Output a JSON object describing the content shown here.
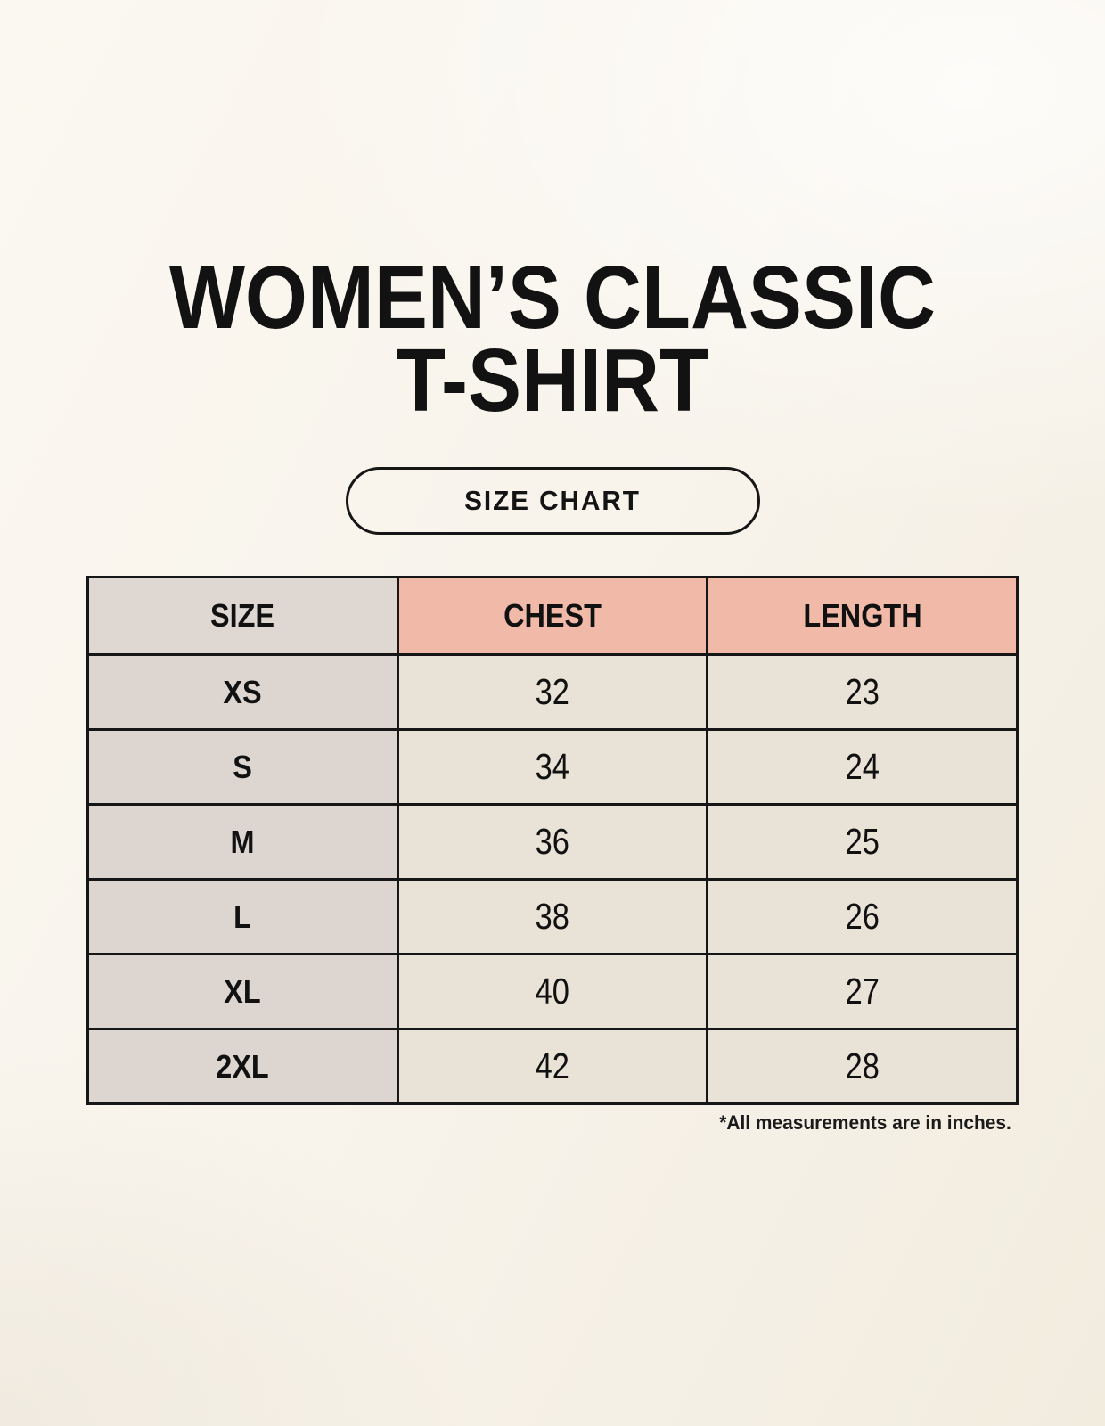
{
  "page": {
    "title_line1": "WOMEN’S CLASSIC",
    "title_line2": "T-SHIRT",
    "badge_label": "SIZE CHART",
    "footnote": "*All measurements are in inches."
  },
  "size_table": {
    "columns": [
      "SIZE",
      "CHEST",
      "LENGTH"
    ],
    "rows": [
      {
        "size": "XS",
        "chest": "32",
        "length": "23"
      },
      {
        "size": "S",
        "chest": "34",
        "length": "24"
      },
      {
        "size": "M",
        "chest": "36",
        "length": "25"
      },
      {
        "size": "L",
        "chest": "38",
        "length": "26"
      },
      {
        "size": "XL",
        "chest": "40",
        "length": "27"
      },
      {
        "size": "2XL",
        "chest": "42",
        "length": "28"
      }
    ]
  },
  "chart_data": {
    "type": "table",
    "title": "WOMEN’S CLASSIC T-SHIRT — SIZE CHART",
    "columns": [
      "SIZE",
      "CHEST",
      "LENGTH"
    ],
    "rows": [
      [
        "XS",
        32,
        23
      ],
      [
        "S",
        34,
        24
      ],
      [
        "M",
        36,
        25
      ],
      [
        "L",
        38,
        26
      ],
      [
        "XL",
        40,
        27
      ],
      [
        "2XL",
        42,
        28
      ]
    ],
    "units": "inches"
  },
  "colors": {
    "page_background": "#f8f4ec",
    "header_size_bg": "#ded7d2",
    "header_measure_bg": "#f0b9a8",
    "row_size_bg": "#dcd5d0",
    "row_value_bg": "#e9e2d7",
    "border": "#161616",
    "text": "#111111"
  }
}
